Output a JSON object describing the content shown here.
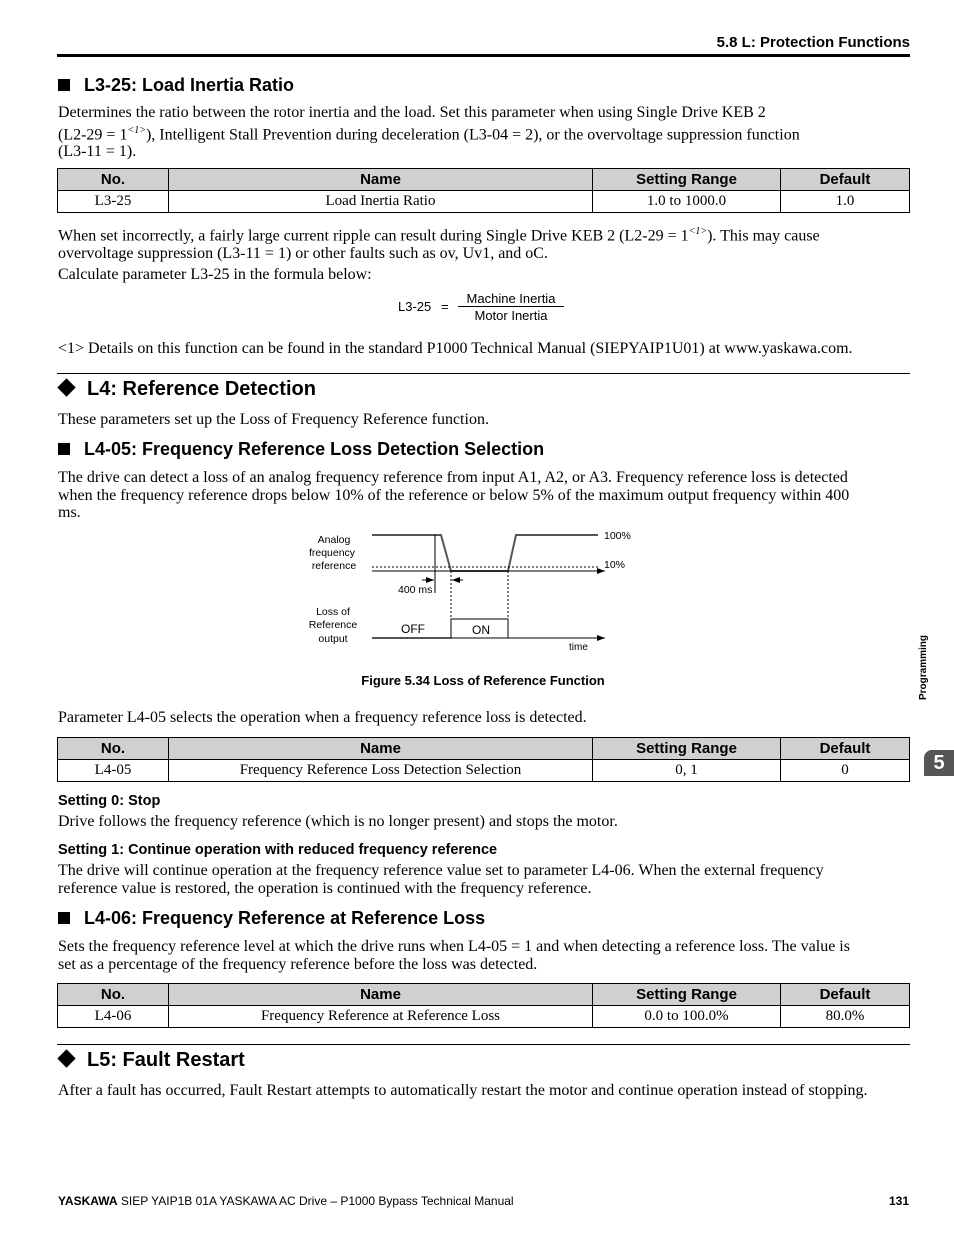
{
  "header": {
    "section": "5.8 L: Protection Functions"
  },
  "l3_25": {
    "heading": "L3-25: Load Inertia Ratio",
    "intro_1": "Determines the ratio between the rotor inertia and the load. Set this parameter when using Single Drive KEB 2",
    "intro_2a": "(L2-29 = 1",
    "intro_2_ref": "<1>",
    "intro_2b": "), Intelligent Stall Prevention during deceleration (L3-04 = 2), or the overvoltage suppression function",
    "intro_3": "(L3-11 = 1).",
    "table": {
      "headers": [
        "No.",
        "Name",
        "Setting Range",
        "Default"
      ],
      "rows": [
        [
          "L3-25",
          "Load Inertia Ratio",
          "1.0 to 1000.0",
          "1.0"
        ]
      ]
    },
    "warn_1a": "When set incorrectly, a fairly large current ripple can result during Single Drive KEB 2 (L2-29 = 1",
    "warn_ref": "<1>",
    "warn_1b": "). This may cause",
    "warn_2": "overvoltage suppression (L3-11 = 1) or other faults such as ov, Uv1, and oC.",
    "calc": "Calculate parameter L3-25 in the formula below:",
    "formula": {
      "lhs": "L3-25",
      "eq": "=",
      "numerator": "Machine Inertia",
      "denominator": "Motor Inertia"
    },
    "footnote": "<1> Details on this function can be found in the standard P1000 Technical Manual (SIEPYAIP1U01) at www.yaskawa.com."
  },
  "l4": {
    "heading": "L4: Reference Detection",
    "intro": "These parameters set up the Loss of Frequency Reference function."
  },
  "l4_05": {
    "heading": "L4-05: Frequency Reference Loss Detection Selection",
    "p1": "The drive can detect a loss of an analog frequency reference from input A1, A2, or A3. Frequency reference loss is detected",
    "p2": "when the frequency reference drops below 10% of the reference or below 5% of the maximum output frequency within 400",
    "p3": "ms.",
    "figure": {
      "label_analog": [
        "Analog",
        "frequency",
        "reference"
      ],
      "label_output": [
        "Loss of",
        "Reference",
        "output"
      ],
      "pct_100": "100%",
      "pct_10": "10%",
      "delay": "400 ms",
      "off": "OFF",
      "on": "ON",
      "time": "time",
      "caption": "Figure 5.34  Loss of Reference Function"
    },
    "select_text": "Parameter L4-05 selects the operation when a frequency reference loss is detected.",
    "table": {
      "headers": [
        "No.",
        "Name",
        "Setting Range",
        "Default"
      ],
      "rows": [
        [
          "L4-05",
          "Frequency Reference Loss Detection Selection",
          "0, 1",
          "0"
        ]
      ]
    },
    "s0_title": "Setting 0: Stop",
    "s0_text": "Drive follows the frequency reference (which is no longer present) and stops the motor.",
    "s1_title": "Setting 1: Continue operation with reduced frequency reference",
    "s1_text1": "The drive will continue operation at the frequency reference value set to parameter L4-06. When the external frequency",
    "s1_text2": "reference value is restored, the operation is continued with the frequency reference."
  },
  "l4_06": {
    "heading": "L4-06: Frequency Reference at Reference Loss",
    "p1": "Sets the frequency reference level at which the drive runs when L4-05 = 1 and when detecting a reference loss. The value is",
    "p2": "set as a percentage of the frequency reference before the loss was detected.",
    "table": {
      "headers": [
        "No.",
        "Name",
        "Setting Range",
        "Default"
      ],
      "rows": [
        [
          "L4-06",
          "Frequency Reference at Reference Loss",
          "0.0 to 100.0%",
          "80.0%"
        ]
      ]
    }
  },
  "l5": {
    "heading": "L5: Fault Restart",
    "intro": "After a fault has occurred, Fault Restart attempts to automatically restart the motor and continue operation instead of stopping."
  },
  "side_tab": {
    "label": "Programming",
    "chapter": "5"
  },
  "footer": {
    "brand": "YASKAWA",
    "text": " SIEP YAIP1B 01A YASKAWA AC Drive – P1000 Bypass Technical Manual",
    "page": "131"
  }
}
